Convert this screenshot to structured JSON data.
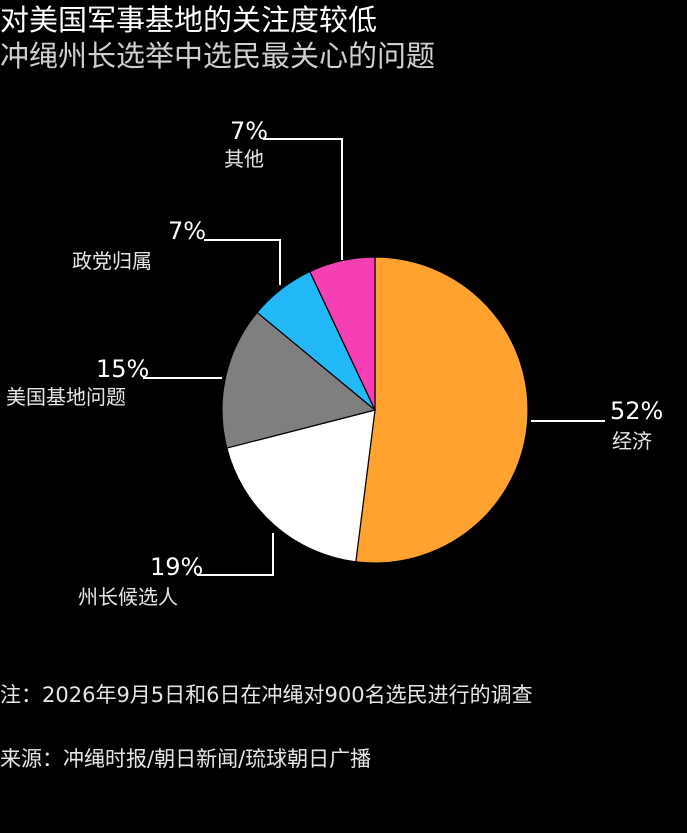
{
  "title": "对美国军事基地的关注度较低",
  "subtitle": "冲绳州长选举中选民最关心的问题",
  "note": "注：2026年9月5日和6日在冲绳对900名选民进行的调查",
  "source": "来源：冲绳时报/朝日新闻/琉球朝日广播",
  "chart_data": {
    "type": "pie",
    "title": "对美国军事基地的关注度较低",
    "subtitle": "冲绳州长选举中选民最关心的问题",
    "unit": "%",
    "slices": [
      {
        "label": "经济",
        "value": 52,
        "display": "52%",
        "color": "#ffa22f"
      },
      {
        "label": "州长候选人",
        "value": 19,
        "display": "19%",
        "color": "#ffffff"
      },
      {
        "label": "美国基地问题",
        "value": 15,
        "display": "15%",
        "color": "#7f7f7f"
      },
      {
        "label": "政党归属",
        "value": 7,
        "display": "7%",
        "color": "#23b9f8"
      },
      {
        "label": "其他",
        "value": 7,
        "display": "7%",
        "color": "#f63fb3"
      }
    ]
  }
}
